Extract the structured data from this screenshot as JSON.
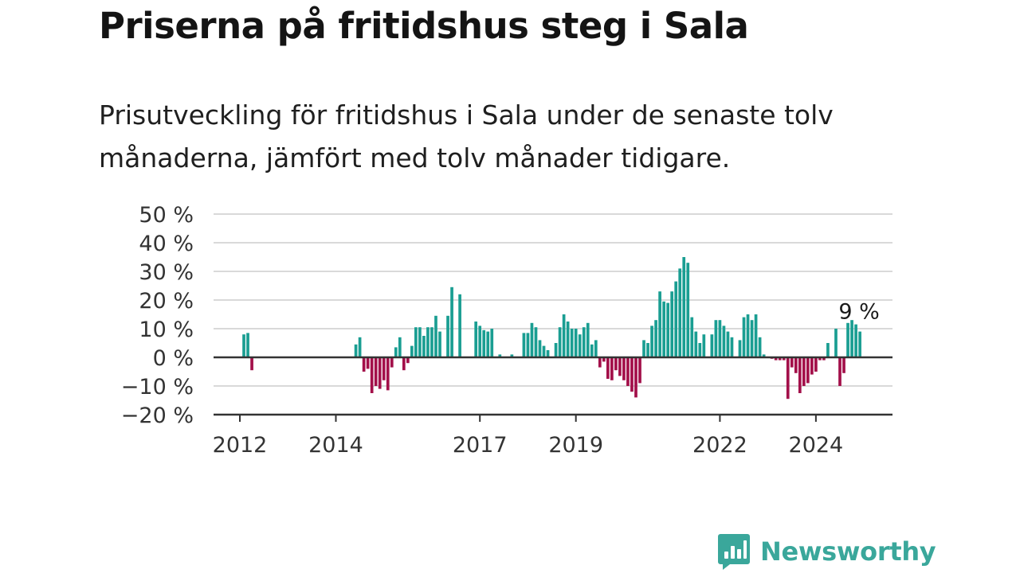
{
  "title": "Priserna på fritidshus steg i Sala",
  "subtitle": "Prisutveckling för fritidshus i Sala under de senaste tolv månaderna, jämfört med tolv månader tidigare.",
  "brand": {
    "name": "Newsworthy",
    "icon": "newsworthy-chart-icon"
  },
  "colors": {
    "positive": "#1a9e92",
    "negative": "#a3104a",
    "grid": "#d9d9d9",
    "axis": "#333333",
    "brand": "#3aa79b"
  },
  "chart_data": {
    "type": "bar",
    "y_ticks": [
      "50 %",
      "40 %",
      "30 %",
      "20 %",
      "10 %",
      "0 %",
      "−10 %",
      "−20 %"
    ],
    "y_tick_values": [
      50,
      40,
      30,
      20,
      10,
      0,
      -10,
      -20
    ],
    "ylim": [
      -20,
      50
    ],
    "x_ticks": [
      "2012",
      "2014",
      "2017",
      "2019",
      "2022",
      "2024"
    ],
    "x_tick_years": [
      2012,
      2014,
      2017,
      2019,
      2022,
      2024
    ],
    "grid": true,
    "annotation": {
      "text": "9 %",
      "year": 2024,
      "month": 12,
      "value": 9
    },
    "series": [
      {
        "values": [
          {
            "year": 2012,
            "month": 2,
            "value": 8
          },
          {
            "year": 2012,
            "month": 3,
            "value": 8.5
          },
          {
            "year": 2012,
            "month": 4,
            "value": -4.5
          },
          {
            "year": 2014,
            "month": 6,
            "value": 4.5
          },
          {
            "year": 2014,
            "month": 7,
            "value": 7
          },
          {
            "year": 2014,
            "month": 8,
            "value": -5
          },
          {
            "year": 2014,
            "month": 9,
            "value": -4
          },
          {
            "year": 2014,
            "month": 10,
            "value": -12.5
          },
          {
            "year": 2014,
            "month": 11,
            "value": -10
          },
          {
            "year": 2014,
            "month": 12,
            "value": -11
          },
          {
            "year": 2015,
            "month": 1,
            "value": -8
          },
          {
            "year": 2015,
            "month": 2,
            "value": -11.5
          },
          {
            "year": 2015,
            "month": 3,
            "value": -3.5
          },
          {
            "year": 2015,
            "month": 4,
            "value": 3.5
          },
          {
            "year": 2015,
            "month": 5,
            "value": 7
          },
          {
            "year": 2015,
            "month": 6,
            "value": -4.5
          },
          {
            "year": 2015,
            "month": 7,
            "value": -2
          },
          {
            "year": 2015,
            "month": 8,
            "value": 4
          },
          {
            "year": 2015,
            "month": 9,
            "value": 10.5
          },
          {
            "year": 2015,
            "month": 10,
            "value": 10.5
          },
          {
            "year": 2015,
            "month": 11,
            "value": 7.5
          },
          {
            "year": 2015,
            "month": 12,
            "value": 10.5
          },
          {
            "year": 2016,
            "month": 1,
            "value": 10.5
          },
          {
            "year": 2016,
            "month": 2,
            "value": 14.5
          },
          {
            "year": 2016,
            "month": 3,
            "value": 9
          },
          {
            "year": 2016,
            "month": 5,
            "value": 14.5
          },
          {
            "year": 2016,
            "month": 6,
            "value": 24.5
          },
          {
            "year": 2016,
            "month": 8,
            "value": 22
          },
          {
            "year": 2016,
            "month": 12,
            "value": 12.5
          },
          {
            "year": 2017,
            "month": 1,
            "value": 11
          },
          {
            "year": 2017,
            "month": 2,
            "value": 9.5
          },
          {
            "year": 2017,
            "month": 3,
            "value": 9
          },
          {
            "year": 2017,
            "month": 4,
            "value": 10
          },
          {
            "year": 2017,
            "month": 6,
            "value": 1
          },
          {
            "year": 2017,
            "month": 9,
            "value": 1
          },
          {
            "year": 2017,
            "month": 12,
            "value": 8.5
          },
          {
            "year": 2018,
            "month": 1,
            "value": 8.5
          },
          {
            "year": 2018,
            "month": 2,
            "value": 12
          },
          {
            "year": 2018,
            "month": 3,
            "value": 10.5
          },
          {
            "year": 2018,
            "month": 4,
            "value": 6
          },
          {
            "year": 2018,
            "month": 5,
            "value": 4
          },
          {
            "year": 2018,
            "month": 6,
            "value": 2.5
          },
          {
            "year": 2018,
            "month": 8,
            "value": 5
          },
          {
            "year": 2018,
            "month": 9,
            "value": 10.5
          },
          {
            "year": 2018,
            "month": 10,
            "value": 15
          },
          {
            "year": 2018,
            "month": 11,
            "value": 12.5
          },
          {
            "year": 2018,
            "month": 12,
            "value": 10
          },
          {
            "year": 2019,
            "month": 1,
            "value": 10
          },
          {
            "year": 2019,
            "month": 2,
            "value": 8
          },
          {
            "year": 2019,
            "month": 3,
            "value": 10.5
          },
          {
            "year": 2019,
            "month": 4,
            "value": 12
          },
          {
            "year": 2019,
            "month": 5,
            "value": 4.5
          },
          {
            "year": 2019,
            "month": 6,
            "value": 6
          },
          {
            "year": 2019,
            "month": 7,
            "value": -3.5
          },
          {
            "year": 2019,
            "month": 8,
            "value": -1.5
          },
          {
            "year": 2019,
            "month": 9,
            "value": -7.5
          },
          {
            "year": 2019,
            "month": 10,
            "value": -8
          },
          {
            "year": 2019,
            "month": 11,
            "value": -4.5
          },
          {
            "year": 2019,
            "month": 12,
            "value": -6.5
          },
          {
            "year": 2020,
            "month": 1,
            "value": -8
          },
          {
            "year": 2020,
            "month": 2,
            "value": -10
          },
          {
            "year": 2020,
            "month": 3,
            "value": -12
          },
          {
            "year": 2020,
            "month": 4,
            "value": -14
          },
          {
            "year": 2020,
            "month": 5,
            "value": -9
          },
          {
            "year": 2020,
            "month": 6,
            "value": 6
          },
          {
            "year": 2020,
            "month": 7,
            "value": 5
          },
          {
            "year": 2020,
            "month": 8,
            "value": 11
          },
          {
            "year": 2020,
            "month": 9,
            "value": 13
          },
          {
            "year": 2020,
            "month": 10,
            "value": 23
          },
          {
            "year": 2020,
            "month": 11,
            "value": 19.5
          },
          {
            "year": 2020,
            "month": 12,
            "value": 19
          },
          {
            "year": 2021,
            "month": 1,
            "value": 23
          },
          {
            "year": 2021,
            "month": 2,
            "value": 26.5
          },
          {
            "year": 2021,
            "month": 3,
            "value": 31
          },
          {
            "year": 2021,
            "month": 4,
            "value": 35
          },
          {
            "year": 2021,
            "month": 5,
            "value": 33
          },
          {
            "year": 2021,
            "month": 6,
            "value": 14
          },
          {
            "year": 2021,
            "month": 7,
            "value": 9
          },
          {
            "year": 2021,
            "month": 8,
            "value": 5
          },
          {
            "year": 2021,
            "month": 9,
            "value": 8
          },
          {
            "year": 2021,
            "month": 11,
            "value": 8
          },
          {
            "year": 2021,
            "month": 12,
            "value": 13
          },
          {
            "year": 2022,
            "month": 1,
            "value": 13
          },
          {
            "year": 2022,
            "month": 2,
            "value": 11
          },
          {
            "year": 2022,
            "month": 3,
            "value": 9
          },
          {
            "year": 2022,
            "month": 4,
            "value": 7
          },
          {
            "year": 2022,
            "month": 6,
            "value": 6
          },
          {
            "year": 2022,
            "month": 7,
            "value": 14
          },
          {
            "year": 2022,
            "month": 8,
            "value": 15
          },
          {
            "year": 2022,
            "month": 9,
            "value": 13
          },
          {
            "year": 2022,
            "month": 10,
            "value": 15
          },
          {
            "year": 2022,
            "month": 11,
            "value": 7
          },
          {
            "year": 2022,
            "month": 12,
            "value": 1
          },
          {
            "year": 2023,
            "month": 2,
            "value": -0.5
          },
          {
            "year": 2023,
            "month": 3,
            "value": -1
          },
          {
            "year": 2023,
            "month": 4,
            "value": -1
          },
          {
            "year": 2023,
            "month": 5,
            "value": -1
          },
          {
            "year": 2023,
            "month": 6,
            "value": -14.5
          },
          {
            "year": 2023,
            "month": 7,
            "value": -3.5
          },
          {
            "year": 2023,
            "month": 8,
            "value": -5.5
          },
          {
            "year": 2023,
            "month": 9,
            "value": -12.5
          },
          {
            "year": 2023,
            "month": 10,
            "value": -10
          },
          {
            "year": 2023,
            "month": 11,
            "value": -9
          },
          {
            "year": 2023,
            "month": 12,
            "value": -6
          },
          {
            "year": 2024,
            "month": 1,
            "value": -5
          },
          {
            "year": 2024,
            "month": 2,
            "value": -1
          },
          {
            "year": 2024,
            "month": 3,
            "value": -1
          },
          {
            "year": 2024,
            "month": 4,
            "value": 5
          },
          {
            "year": 2024,
            "month": 6,
            "value": 10
          },
          {
            "year": 2024,
            "month": 7,
            "value": -10
          },
          {
            "year": 2024,
            "month": 8,
            "value": -5.5
          },
          {
            "year": 2024,
            "month": 9,
            "value": 12
          },
          {
            "year": 2024,
            "month": 10,
            "value": 13
          },
          {
            "year": 2024,
            "month": 11,
            "value": 11.5
          },
          {
            "year": 2024,
            "month": 12,
            "value": 9
          }
        ]
      }
    ]
  }
}
